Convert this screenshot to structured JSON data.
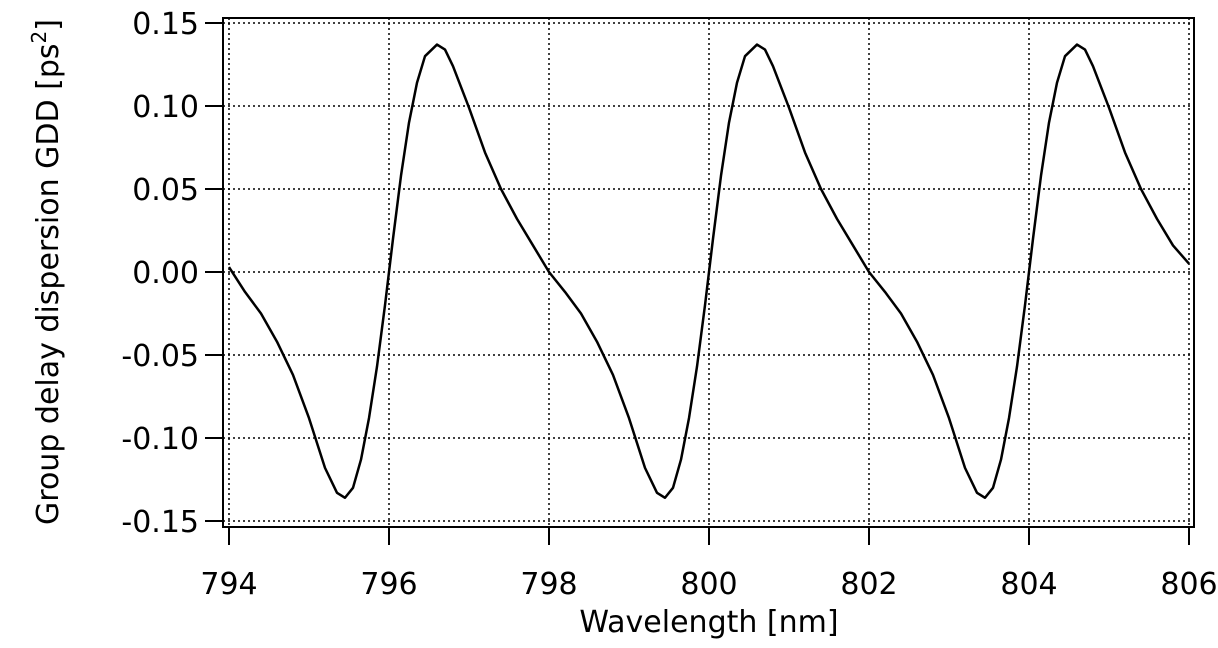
{
  "chart_data": {
    "type": "line",
    "xlabel": "Wavelength [nm]",
    "ylabel": {
      "text": "Group delay dispersion GDD [ps",
      "superscript": "2",
      "suffix": "]"
    },
    "x": [
      794,
      794.2,
      794.4,
      794.6,
      794.8,
      795,
      795.2,
      795.35,
      795.45,
      795.55,
      795.65,
      795.75,
      795.85,
      795.95,
      796.05,
      796.15,
      796.25,
      796.35,
      796.45,
      796.6,
      796.7,
      796.8,
      797,
      797.2,
      797.4,
      797.6,
      797.8,
      798,
      798.2,
      798.4,
      798.6,
      798.8,
      799,
      799.2,
      799.35,
      799.45,
      799.55,
      799.65,
      799.75,
      799.85,
      799.95,
      800.05,
      800.15,
      800.25,
      800.35,
      800.45,
      800.6,
      800.7,
      800.8,
      801,
      801.2,
      801.4,
      801.6,
      801.8,
      802,
      802.2,
      802.4,
      802.6,
      802.8,
      803,
      803.2,
      803.35,
      803.45,
      803.55,
      803.65,
      803.75,
      803.85,
      803.95,
      804.05,
      804.15,
      804.25,
      804.35,
      804.45,
      804.6,
      804.7,
      804.8,
      805,
      805.2,
      805.4,
      805.6,
      805.8,
      806
    ],
    "series": [
      {
        "name": "GDD",
        "color": "#000000",
        "values": [
          0.003,
          -0.012,
          -0.025,
          -0.042,
          -0.062,
          -0.088,
          -0.118,
          -0.133,
          -0.136,
          -0.13,
          -0.113,
          -0.088,
          -0.057,
          -0.02,
          0.02,
          0.058,
          0.09,
          0.114,
          0.13,
          0.137,
          0.134,
          0.124,
          0.099,
          0.072,
          0.05,
          0.032,
          0.016,
          0.0,
          -0.012,
          -0.025,
          -0.042,
          -0.062,
          -0.088,
          -0.118,
          -0.133,
          -0.136,
          -0.13,
          -0.113,
          -0.088,
          -0.057,
          -0.02,
          0.02,
          0.058,
          0.09,
          0.114,
          0.13,
          0.137,
          0.134,
          0.124,
          0.099,
          0.072,
          0.05,
          0.032,
          0.016,
          0.0,
          -0.012,
          -0.025,
          -0.042,
          -0.062,
          -0.088,
          -0.118,
          -0.133,
          -0.136,
          -0.13,
          -0.113,
          -0.088,
          -0.057,
          -0.02,
          0.02,
          0.058,
          0.09,
          0.114,
          0.13,
          0.137,
          0.134,
          0.124,
          0.099,
          0.072,
          0.05,
          0.032,
          0.016,
          0.005
        ]
      }
    ],
    "xlim": [
      794,
      806
    ],
    "xticks": [
      794,
      796,
      798,
      800,
      802,
      804,
      806
    ],
    "ylim": [
      -0.15,
      0.15
    ],
    "yticks": [
      0.15,
      {
        "value": 0.1,
        "label": "0.10"
      },
      0.05,
      {
        "value": 0,
        "label": "0.00"
      },
      -0.05,
      {
        "value": -0.1,
        "label": "-0.10"
      },
      -0.15
    ],
    "grid": true
  }
}
